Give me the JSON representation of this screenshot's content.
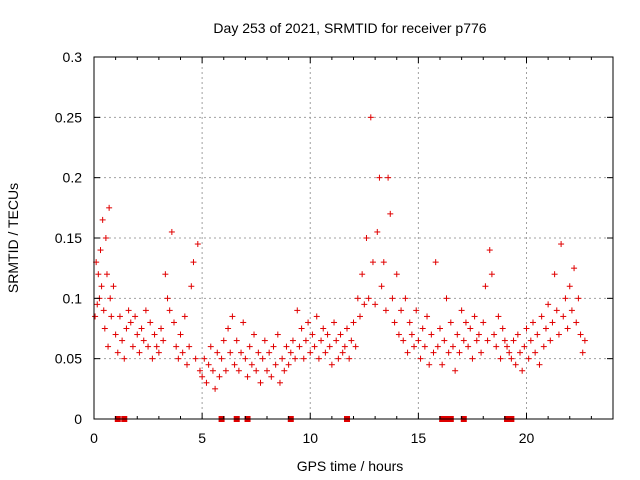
{
  "chart_data": {
    "type": "scatter",
    "title": "Day 253 of 2021, SRMTID for receiver p776",
    "xlabel": "GPS time / hours",
    "ylabel": "SRMTID / TECUs",
    "xlim": [
      0,
      24
    ],
    "ylim": [
      0,
      0.3
    ],
    "xticks": [
      0,
      5,
      10,
      15,
      20
    ],
    "yticks": [
      0,
      0.05,
      0.1,
      0.15,
      0.2,
      0.25,
      0.3
    ],
    "xtick_labels": [
      "0",
      "5",
      "10",
      "15",
      "20"
    ],
    "ytick_labels": [
      "0",
      "0.05",
      "0.1",
      "0.15",
      "0.2",
      "0.25",
      "0.3"
    ],
    "grid": true,
    "marker": "+",
    "color": "#e00000",
    "x_range_hours": [
      0.05,
      22.7
    ],
    "series": [
      {
        "name": "SRMTID",
        "points": [
          [
            0.05,
            0.085
          ],
          [
            0.1,
            0.13
          ],
          [
            0.15,
            0.095
          ],
          [
            0.2,
            0.12
          ],
          [
            0.25,
            0.1
          ],
          [
            0.3,
            0.14
          ],
          [
            0.35,
            0.11
          ],
          [
            0.4,
            0.165
          ],
          [
            0.45,
            0.09
          ],
          [
            0.5,
            0.075
          ],
          [
            0.55,
            0.15
          ],
          [
            0.6,
            0.12
          ],
          [
            0.65,
            0.06
          ],
          [
            0.7,
            0.175
          ],
          [
            0.75,
            0.1
          ],
          [
            0.8,
            0.085
          ],
          [
            0.9,
            0.11
          ],
          [
            1.0,
            0.07
          ],
          [
            1.1,
            0.055
          ],
          [
            1.2,
            0.085
          ],
          [
            1.3,
            0.065
          ],
          [
            1.4,
            0.05
          ],
          [
            1.5,
            0.075
          ],
          [
            1.6,
            0.09
          ],
          [
            1.7,
            0.08
          ],
          [
            1.8,
            0.06
          ],
          [
            1.9,
            0.085
          ],
          [
            2.0,
            0.07
          ],
          [
            2.1,
            0.055
          ],
          [
            2.2,
            0.075
          ],
          [
            2.3,
            0.065
          ],
          [
            2.4,
            0.09
          ],
          [
            2.5,
            0.06
          ],
          [
            2.6,
            0.08
          ],
          [
            2.7,
            0.05
          ],
          [
            2.8,
            0.07
          ],
          [
            2.9,
            0.06
          ],
          [
            3.0,
            0.055
          ],
          [
            3.1,
            0.075
          ],
          [
            3.2,
            0.065
          ],
          [
            3.3,
            0.12
          ],
          [
            3.4,
            0.1
          ],
          [
            3.5,
            0.09
          ],
          [
            3.6,
            0.155
          ],
          [
            3.7,
            0.08
          ],
          [
            3.8,
            0.06
          ],
          [
            3.9,
            0.05
          ],
          [
            4.0,
            0.07
          ],
          [
            4.1,
            0.055
          ],
          [
            4.2,
            0.085
          ],
          [
            4.3,
            0.045
          ],
          [
            4.4,
            0.06
          ],
          [
            4.5,
            0.11
          ],
          [
            4.6,
            0.13
          ],
          [
            4.7,
            0.05
          ],
          [
            4.8,
            0.145
          ],
          [
            4.9,
            0.04
          ],
          [
            5.0,
            0.035
          ],
          [
            5.1,
            0.05
          ],
          [
            5.2,
            0.03
          ],
          [
            5.3,
            0.045
          ],
          [
            5.4,
            0.06
          ],
          [
            5.5,
            0.04
          ],
          [
            5.6,
            0.025
          ],
          [
            5.7,
            0.055
          ],
          [
            5.8,
            0.035
          ],
          [
            5.9,
            0.05
          ],
          [
            6.0,
            0.065
          ],
          [
            6.1,
            0.04
          ],
          [
            6.2,
            0.075
          ],
          [
            6.3,
            0.055
          ],
          [
            6.4,
            0.085
          ],
          [
            6.5,
            0.045
          ],
          [
            6.6,
            0.065
          ],
          [
            6.7,
            0.04
          ],
          [
            6.8,
            0.055
          ],
          [
            6.9,
            0.08
          ],
          [
            7.0,
            0.05
          ],
          [
            7.1,
            0.035
          ],
          [
            7.2,
            0.06
          ],
          [
            7.3,
            0.045
          ],
          [
            7.4,
            0.07
          ],
          [
            7.5,
            0.04
          ],
          [
            7.6,
            0.055
          ],
          [
            7.7,
            0.03
          ],
          [
            7.8,
            0.05
          ],
          [
            7.9,
            0.065
          ],
          [
            8.0,
            0.04
          ],
          [
            8.1,
            0.055
          ],
          [
            8.2,
            0.035
          ],
          [
            8.3,
            0.06
          ],
          [
            8.4,
            0.045
          ],
          [
            8.5,
            0.07
          ],
          [
            8.6,
            0.03
          ],
          [
            8.7,
            0.05
          ],
          [
            8.8,
            0.04
          ],
          [
            8.9,
            0.06
          ],
          [
            9.0,
            0.045
          ],
          [
            9.1,
            0.055
          ],
          [
            9.2,
            0.065
          ],
          [
            9.3,
            0.05
          ],
          [
            9.4,
            0.09
          ],
          [
            9.5,
            0.06
          ],
          [
            9.6,
            0.075
          ],
          [
            9.7,
            0.05
          ],
          [
            9.8,
            0.065
          ],
          [
            9.9,
            0.08
          ],
          [
            10.0,
            0.055
          ],
          [
            10.1,
            0.07
          ],
          [
            10.2,
            0.06
          ],
          [
            10.3,
            0.085
          ],
          [
            10.4,
            0.05
          ],
          [
            10.5,
            0.065
          ],
          [
            10.6,
            0.075
          ],
          [
            10.7,
            0.055
          ],
          [
            10.8,
            0.07
          ],
          [
            10.9,
            0.06
          ],
          [
            11.0,
            0.045
          ],
          [
            11.1,
            0.08
          ],
          [
            11.2,
            0.065
          ],
          [
            11.3,
            0.05
          ],
          [
            11.4,
            0.07
          ],
          [
            11.5,
            0.055
          ],
          [
            11.6,
            0.06
          ],
          [
            11.7,
            0.075
          ],
          [
            11.8,
            0.05
          ],
          [
            11.9,
            0.065
          ],
          [
            12.0,
            0.08
          ],
          [
            12.1,
            0.06
          ],
          [
            12.2,
            0.1
          ],
          [
            12.3,
            0.085
          ],
          [
            12.4,
            0.12
          ],
          [
            12.5,
            0.095
          ],
          [
            12.6,
            0.15
          ],
          [
            12.7,
            0.1
          ],
          [
            12.8,
            0.25
          ],
          [
            12.9,
            0.13
          ],
          [
            13.0,
            0.095
          ],
          [
            13.1,
            0.155
          ],
          [
            13.2,
            0.2
          ],
          [
            13.3,
            0.11
          ],
          [
            13.4,
            0.13
          ],
          [
            13.5,
            0.09
          ],
          [
            13.6,
            0.2
          ],
          [
            13.7,
            0.17
          ],
          [
            13.8,
            0.1
          ],
          [
            13.9,
            0.08
          ],
          [
            14.0,
            0.12
          ],
          [
            14.1,
            0.07
          ],
          [
            14.2,
            0.09
          ],
          [
            14.3,
            0.065
          ],
          [
            14.4,
            0.1
          ],
          [
            14.5,
            0.055
          ],
          [
            14.6,
            0.08
          ],
          [
            14.7,
            0.07
          ],
          [
            14.8,
            0.06
          ],
          [
            14.9,
            0.09
          ],
          [
            15.0,
            0.065
          ],
          [
            15.1,
            0.05
          ],
          [
            15.2,
            0.075
          ],
          [
            15.3,
            0.06
          ],
          [
            15.4,
            0.085
          ],
          [
            15.5,
            0.045
          ],
          [
            15.6,
            0.07
          ],
          [
            15.7,
            0.055
          ],
          [
            15.8,
            0.13
          ],
          [
            15.9,
            0.06
          ],
          [
            16.0,
            0.075
          ],
          [
            16.1,
            0.045
          ],
          [
            16.2,
            0.065
          ],
          [
            16.3,
            0.1
          ],
          [
            16.4,
            0.055
          ],
          [
            16.5,
            0.08
          ],
          [
            16.6,
            0.06
          ],
          [
            16.7,
            0.04
          ],
          [
            16.8,
            0.07
          ],
          [
            16.9,
            0.055
          ],
          [
            17.0,
            0.09
          ],
          [
            17.1,
            0.065
          ],
          [
            17.2,
            0.08
          ],
          [
            17.3,
            0.06
          ],
          [
            17.4,
            0.075
          ],
          [
            17.5,
            0.05
          ],
          [
            17.6,
            0.085
          ],
          [
            17.7,
            0.065
          ],
          [
            17.8,
            0.07
          ],
          [
            17.9,
            0.055
          ],
          [
            18.0,
            0.08
          ],
          [
            18.1,
            0.11
          ],
          [
            18.2,
            0.065
          ],
          [
            18.3,
            0.14
          ],
          [
            18.4,
            0.12
          ],
          [
            18.5,
            0.07
          ],
          [
            18.6,
            0.06
          ],
          [
            18.7,
            0.085
          ],
          [
            18.8,
            0.05
          ],
          [
            18.9,
            0.075
          ],
          [
            19.0,
            0.065
          ],
          [
            19.1,
            0.06
          ],
          [
            19.2,
            0.055
          ],
          [
            19.3,
            0.05
          ],
          [
            19.4,
            0.065
          ],
          [
            19.5,
            0.045
          ],
          [
            19.6,
            0.07
          ],
          [
            19.7,
            0.055
          ],
          [
            19.8,
            0.04
          ],
          [
            19.9,
            0.06
          ],
          [
            20.0,
            0.075
          ],
          [
            20.1,
            0.05
          ],
          [
            20.2,
            0.065
          ],
          [
            20.3,
            0.08
          ],
          [
            20.4,
            0.055
          ],
          [
            20.5,
            0.07
          ],
          [
            20.6,
            0.045
          ],
          [
            20.7,
            0.085
          ],
          [
            20.8,
            0.06
          ],
          [
            20.9,
            0.075
          ],
          [
            21.0,
            0.095
          ],
          [
            21.1,
            0.065
          ],
          [
            21.2,
            0.08
          ],
          [
            21.3,
            0.12
          ],
          [
            21.4,
            0.09
          ],
          [
            21.5,
            0.07
          ],
          [
            21.6,
            0.145
          ],
          [
            21.7,
            0.085
          ],
          [
            21.8,
            0.1
          ],
          [
            21.9,
            0.075
          ],
          [
            22.0,
            0.11
          ],
          [
            22.1,
            0.09
          ],
          [
            22.2,
            0.125
          ],
          [
            22.3,
            0.08
          ],
          [
            22.4,
            0.1
          ],
          [
            22.5,
            0.07
          ],
          [
            22.6,
            0.055
          ],
          [
            22.7,
            0.065
          ]
        ]
      }
    ],
    "gap_markers_x": [
      1.1,
      1.4,
      5.9,
      6.6,
      7.1,
      9.1,
      11.7,
      16.1,
      16.3,
      16.5,
      17.1,
      19.1,
      19.3
    ]
  }
}
